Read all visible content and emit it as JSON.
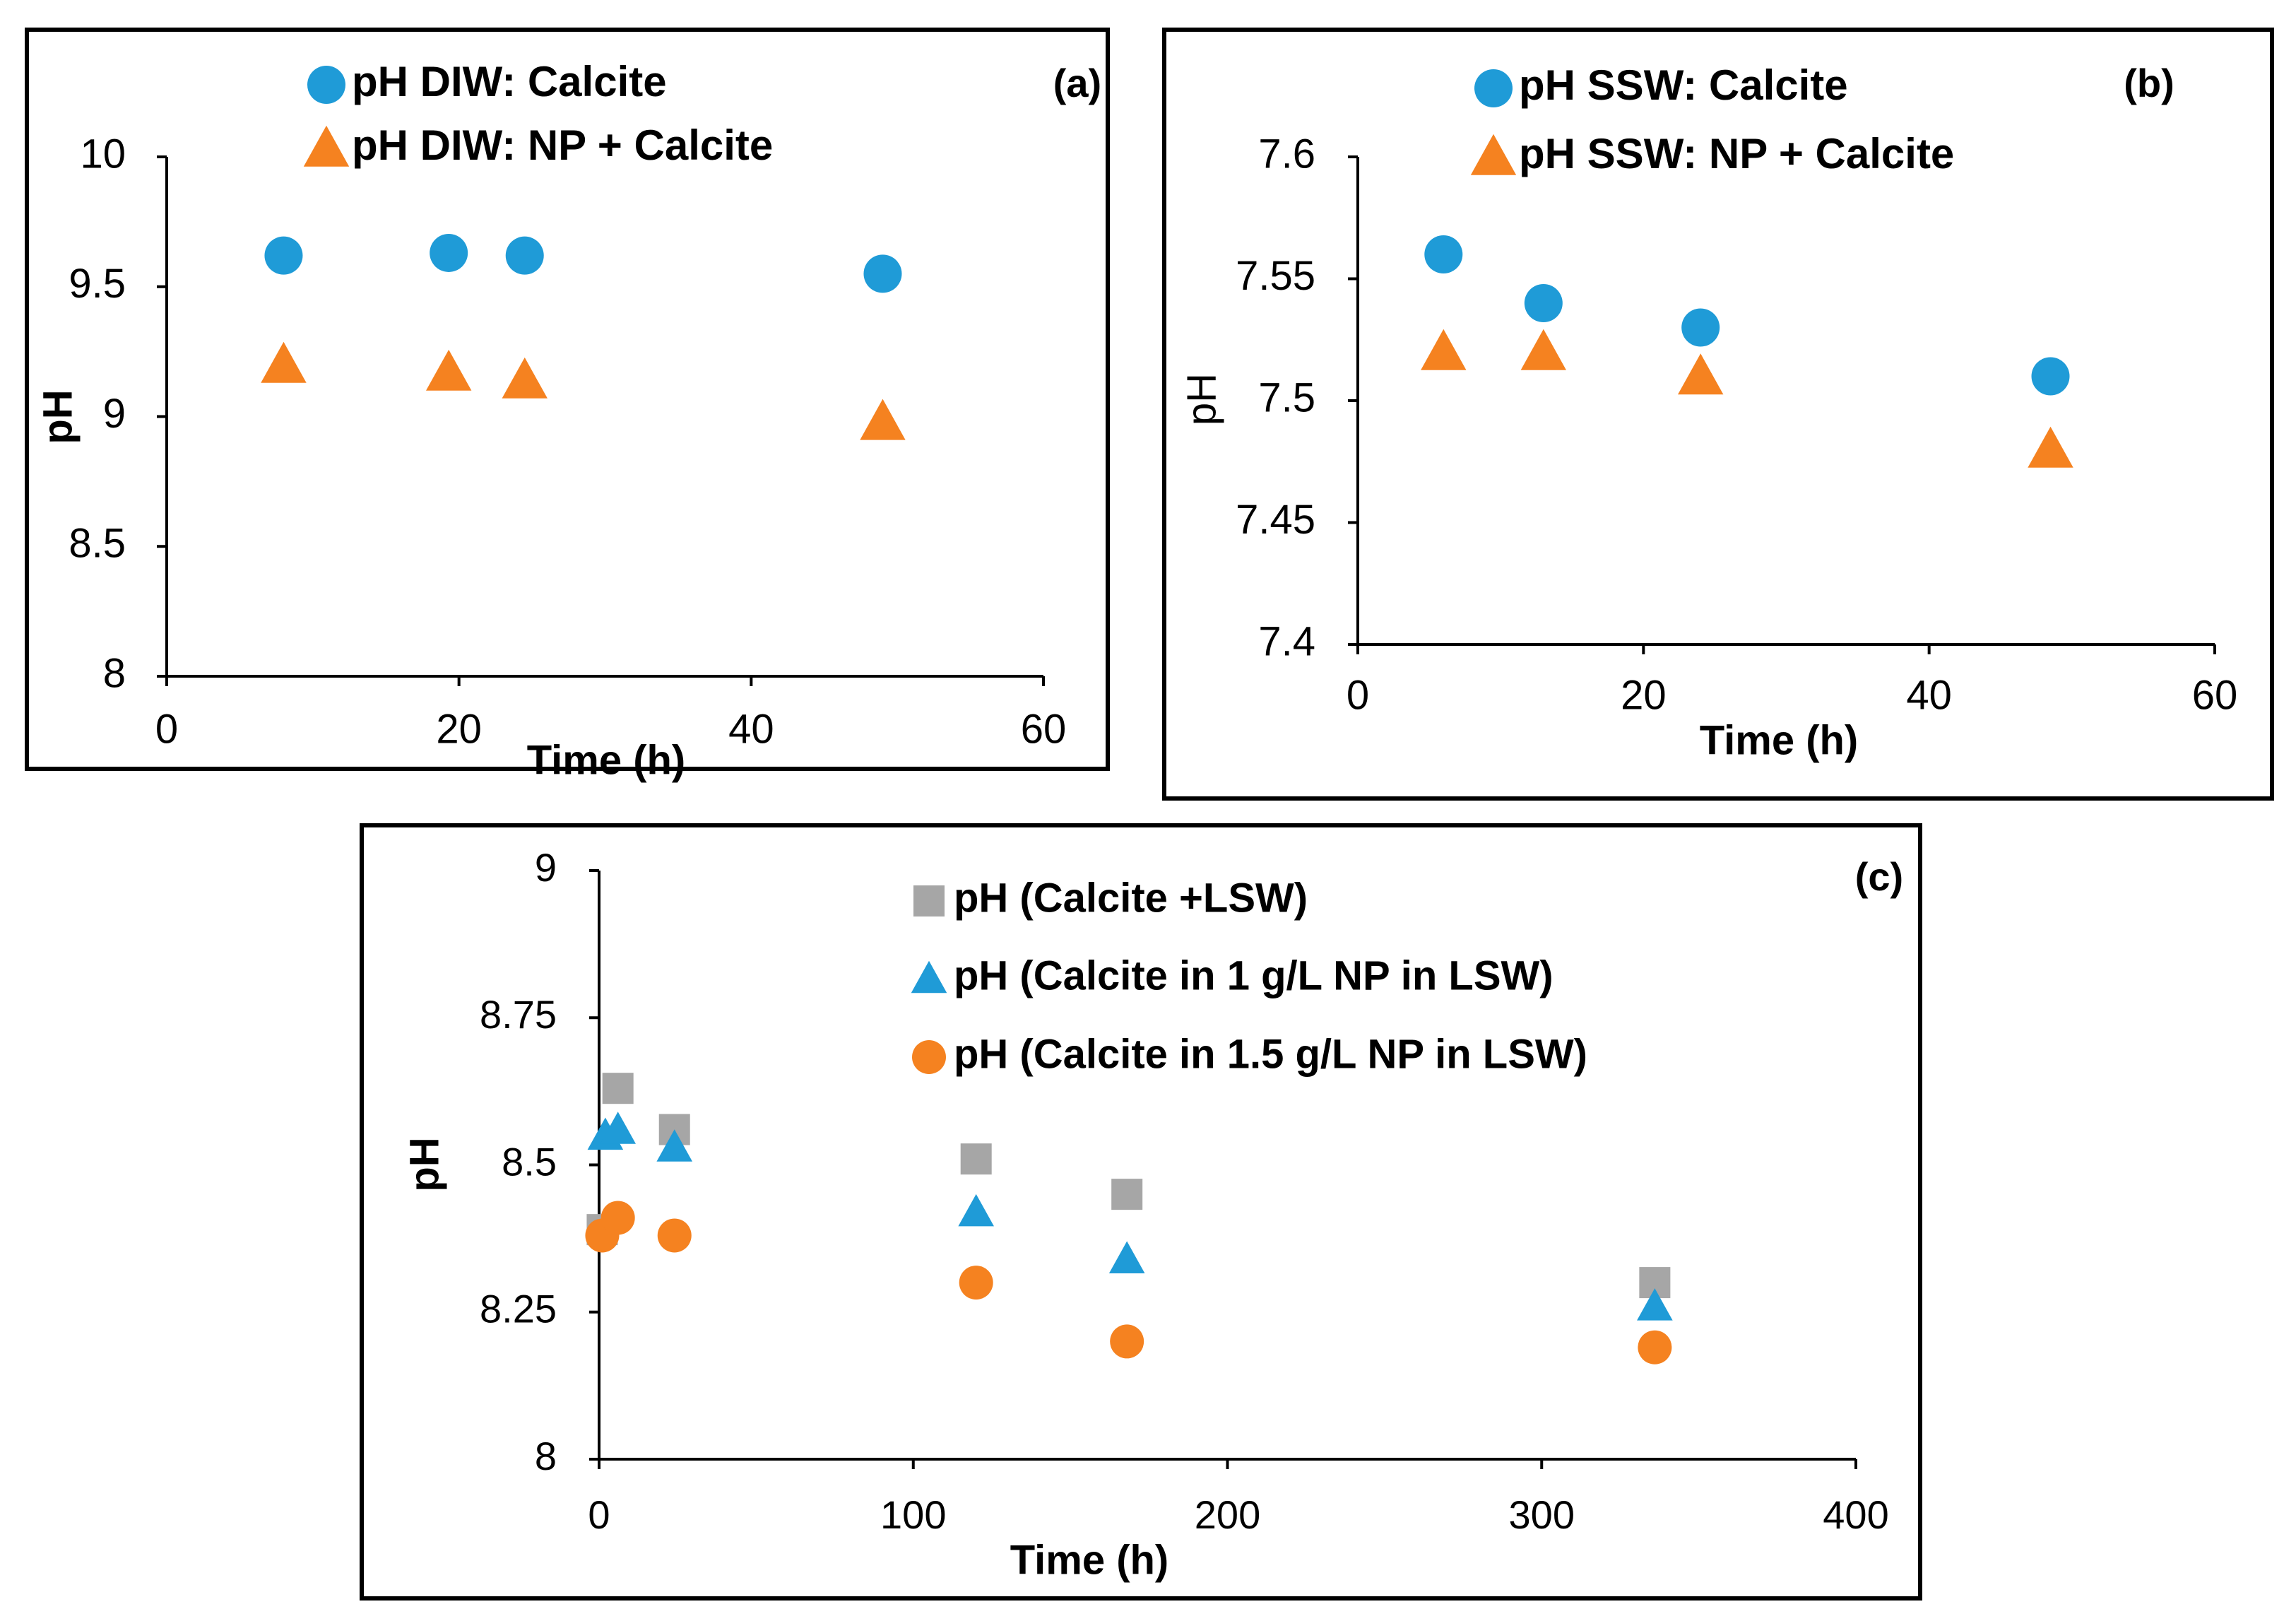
{
  "chart_data": [
    {
      "id": "a",
      "type": "scatter",
      "panel_label": "(a)",
      "xlabel": "Time (h)",
      "ylabel": "pH",
      "xlim": [
        0,
        60
      ],
      "ylim": [
        8,
        10
      ],
      "xticks": [
        0,
        20,
        40,
        60
      ],
      "yticks": [
        8,
        8.5,
        9,
        9.5,
        10
      ],
      "grid": false,
      "legend": "top-center",
      "series": [
        {
          "name": "pH DIW: Calcite",
          "marker": "circle",
          "color": "#1F9BD7",
          "x": [
            8,
            19.3,
            24.5,
            49
          ],
          "y": [
            9.62,
            9.63,
            9.62,
            9.55
          ]
        },
        {
          "name": "pH DIW: NP + Calcite",
          "marker": "triangle",
          "color": "#F58220",
          "x": [
            8,
            19.3,
            24.5,
            49
          ],
          "y": [
            9.2,
            9.17,
            9.14,
            8.98
          ]
        }
      ]
    },
    {
      "id": "b",
      "type": "scatter",
      "panel_label": "(b)",
      "xlabel": "Time (h)",
      "ylabel": "pH",
      "xlim": [
        0,
        60
      ],
      "ylim": [
        7.4,
        7.6
      ],
      "xticks": [
        0,
        20,
        40,
        60
      ],
      "yticks": [
        7.4,
        7.45,
        7.5,
        7.55,
        7.6
      ],
      "grid": false,
      "legend": "top-center",
      "series": [
        {
          "name": "pH SSW: Calcite",
          "marker": "circle",
          "color": "#1F9BD7",
          "x": [
            6,
            13,
            24,
            48.5
          ],
          "y": [
            7.56,
            7.54,
            7.53,
            7.51
          ]
        },
        {
          "name": "pH SSW: NP + Calcite",
          "marker": "triangle",
          "color": "#F58220",
          "x": [
            6,
            13,
            24,
            48.5
          ],
          "y": [
            7.52,
            7.52,
            7.51,
            7.48
          ]
        }
      ]
    },
    {
      "id": "c",
      "type": "scatter",
      "panel_label": "(c)",
      "xlabel": "Time (h)",
      "ylabel": "pH",
      "xlim": [
        0,
        400
      ],
      "ylim": [
        8,
        9
      ],
      "xticks": [
        0,
        100,
        200,
        300,
        400
      ],
      "yticks": [
        "8",
        "8.25",
        "8.5",
        "8.75",
        "9"
      ],
      "grid": false,
      "legend": "top-center",
      "series": [
        {
          "name": "pH (Calcite +LSW)",
          "marker": "square",
          "color": "#A6A6A6",
          "x": [
            1,
            6,
            24,
            120,
            168,
            336
          ],
          "y": [
            8.39,
            8.63,
            8.56,
            8.51,
            8.45,
            8.3
          ]
        },
        {
          "name": "pH (Calcite in 1 g/L NP in LSW)",
          "marker": "triangle",
          "color": "#1F9BD7",
          "x": [
            2,
            6,
            24,
            120,
            168,
            336
          ],
          "y": [
            8.55,
            8.56,
            8.53,
            8.42,
            8.34,
            8.26
          ]
        },
        {
          "name": "pH (Calcite in 1.5 g/L NP in LSW)",
          "marker": "circle",
          "color": "#F58220",
          "x": [
            1,
            6,
            24,
            120,
            168,
            336
          ],
          "y": [
            8.38,
            8.41,
            8.38,
            8.3,
            8.2,
            8.19
          ]
        }
      ]
    }
  ]
}
